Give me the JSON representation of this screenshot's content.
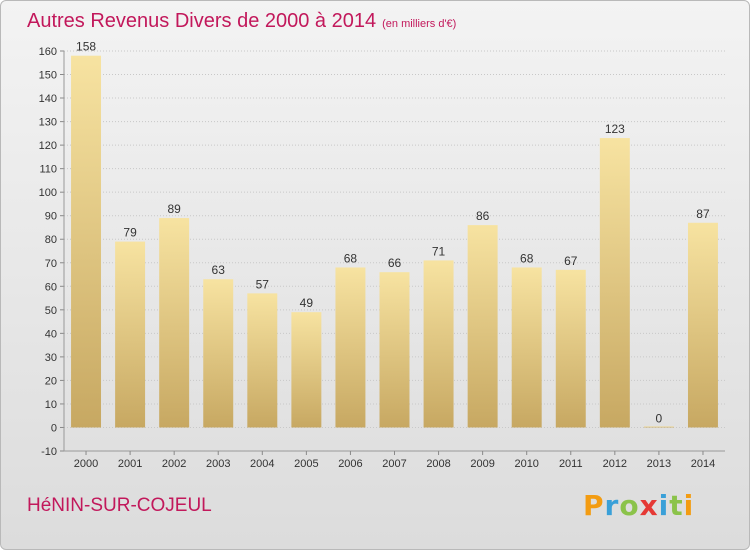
{
  "header": {
    "title": "Autres Revenus Divers de 2000 à 2014",
    "unit": "(en milliers d'€)"
  },
  "footer": {
    "city": "HéNIN-SUR-COJEUL",
    "logo_text": "Proxiti",
    "logo_colors": [
      "#f39c12",
      "#3aa0d8",
      "#8bc34a",
      "#e53935",
      "#3aa0d8",
      "#8bc34a",
      "#f39c12"
    ]
  },
  "colors": {
    "title": "#c2185b",
    "bar_top": "#f7e3a1",
    "bar_bottom": "#c7a862",
    "grid": "#c8c8c8",
    "axis_text": "#333333"
  },
  "chart_data": {
    "type": "bar",
    "title": "Autres Revenus Divers de 2000 à 2014",
    "subtitle": "(en milliers d'€)",
    "xlabel": "",
    "ylabel": "",
    "categories": [
      "2000",
      "2001",
      "2002",
      "2003",
      "2004",
      "2005",
      "2006",
      "2007",
      "2008",
      "2009",
      "2010",
      "2011",
      "2012",
      "2013",
      "2014"
    ],
    "values": [
      158,
      79,
      89,
      63,
      57,
      49,
      68,
      66,
      71,
      86,
      68,
      67,
      123,
      0,
      87
    ],
    "value_labels": [
      "158",
      "79",
      "89",
      "63",
      "57",
      "49",
      "68",
      "66",
      "71",
      "86",
      "68",
      "67",
      "123",
      "0",
      "87"
    ],
    "ylim": [
      -10,
      160
    ],
    "yticks": [
      -10,
      0,
      10,
      20,
      30,
      40,
      50,
      60,
      70,
      80,
      90,
      100,
      110,
      120,
      130,
      140,
      150,
      160
    ],
    "ytick_labels": [
      "-10",
      "0",
      "10",
      "20",
      "30",
      "40",
      "50",
      "60",
      "70",
      "80",
      "90",
      "100",
      "110",
      "120",
      "130",
      "140",
      "150",
      "160"
    ],
    "grid": true,
    "legend": "none"
  }
}
